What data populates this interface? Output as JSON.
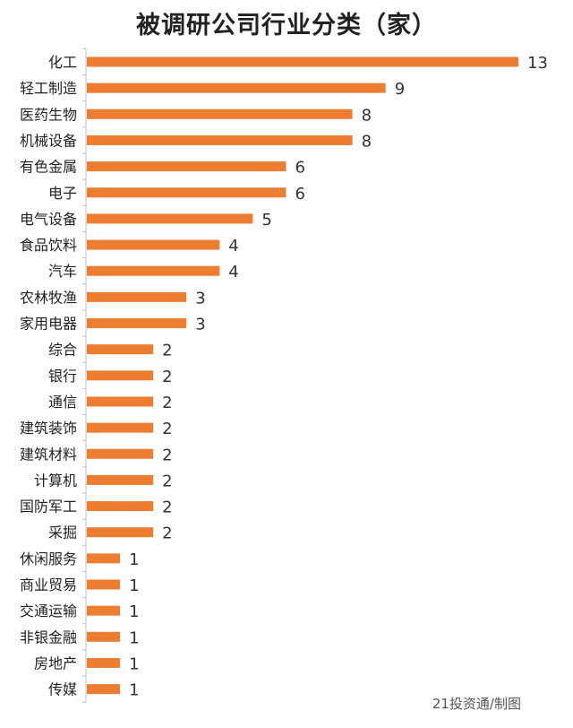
{
  "chart_data": {
    "type": "bar",
    "orientation": "horizontal",
    "title": "被调研公司行业分类（家）",
    "categories": [
      "化工",
      "轻工制造",
      "医药生物",
      "机械设备",
      "有色金属",
      "电子",
      "电气设备",
      "食品饮料",
      "汽车",
      "农林牧渔",
      "家用电器",
      "综合",
      "银行",
      "通信",
      "建筑装饰",
      "建筑材料",
      "计算机",
      "国防军工",
      "采掘",
      "休闲服务",
      "商业贸易",
      "交通运输",
      "非银金融",
      "房地产",
      "传媒"
    ],
    "values": [
      13,
      9,
      8,
      8,
      6,
      6,
      5,
      4,
      4,
      3,
      3,
      2,
      2,
      2,
      2,
      2,
      2,
      2,
      2,
      1,
      1,
      1,
      1,
      1,
      1
    ],
    "xlim": [
      0,
      13
    ],
    "grid": false,
    "bar_color": "#ED7D31",
    "data_labels": true
  },
  "credit": "21投资通/制图"
}
